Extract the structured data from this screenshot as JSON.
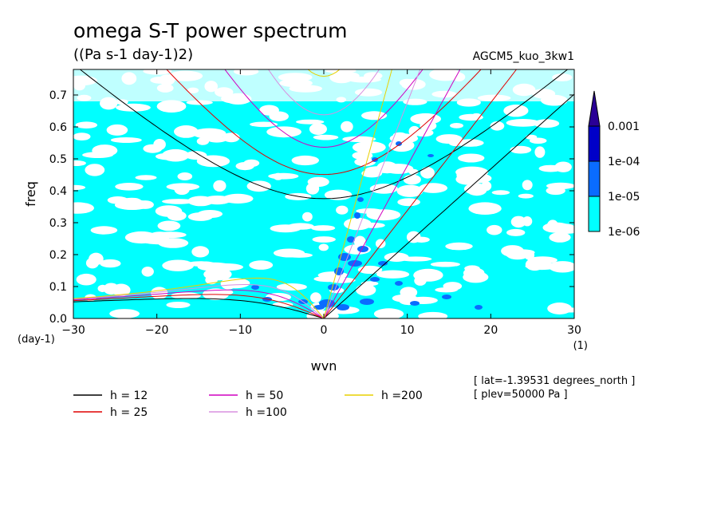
{
  "chart_data": {
    "type": "heatmap",
    "title": "omega S-T power spectrum",
    "subtitle": "((Pa s-1 day-1)2)",
    "run_label": "AGCM5_kuo_3kw1",
    "xlabel": "wvn",
    "ylabel": "freq",
    "x_unit": "(1)",
    "y_unit": "(day-1)",
    "xlim": [
      -30,
      30
    ],
    "ylim": [
      0,
      0.78
    ],
    "x_ticks": [
      "-30",
      "-20",
      "-10",
      "0",
      "10",
      "20",
      "30"
    ],
    "y_ticks": [
      "0.0",
      "0.1",
      "0.2",
      "0.3",
      "0.4",
      "0.5",
      "0.6",
      "0.7"
    ],
    "colorbar": {
      "levels": [
        "1e-06",
        "1e-05",
        "1e-04",
        "0.001"
      ],
      "colors": [
        "#00ffff",
        "#0a6cff",
        "#0000c8",
        "#2a0096"
      ]
    },
    "dispersion_curves": [
      {
        "name": "h = 12",
        "color": "#000000"
      },
      {
        "name": "h = 25",
        "color": "#e00000"
      },
      {
        "name": "h = 50",
        "color": "#d000c0"
      },
      {
        "name": "h =100",
        "color": "#d890e0"
      },
      {
        "name": "h =200",
        "color": "#e8d000"
      }
    ],
    "notes": [
      "[ lat=-1.39531 degrees_north ]",
      "[ plev=50000 Pa ]"
    ]
  }
}
